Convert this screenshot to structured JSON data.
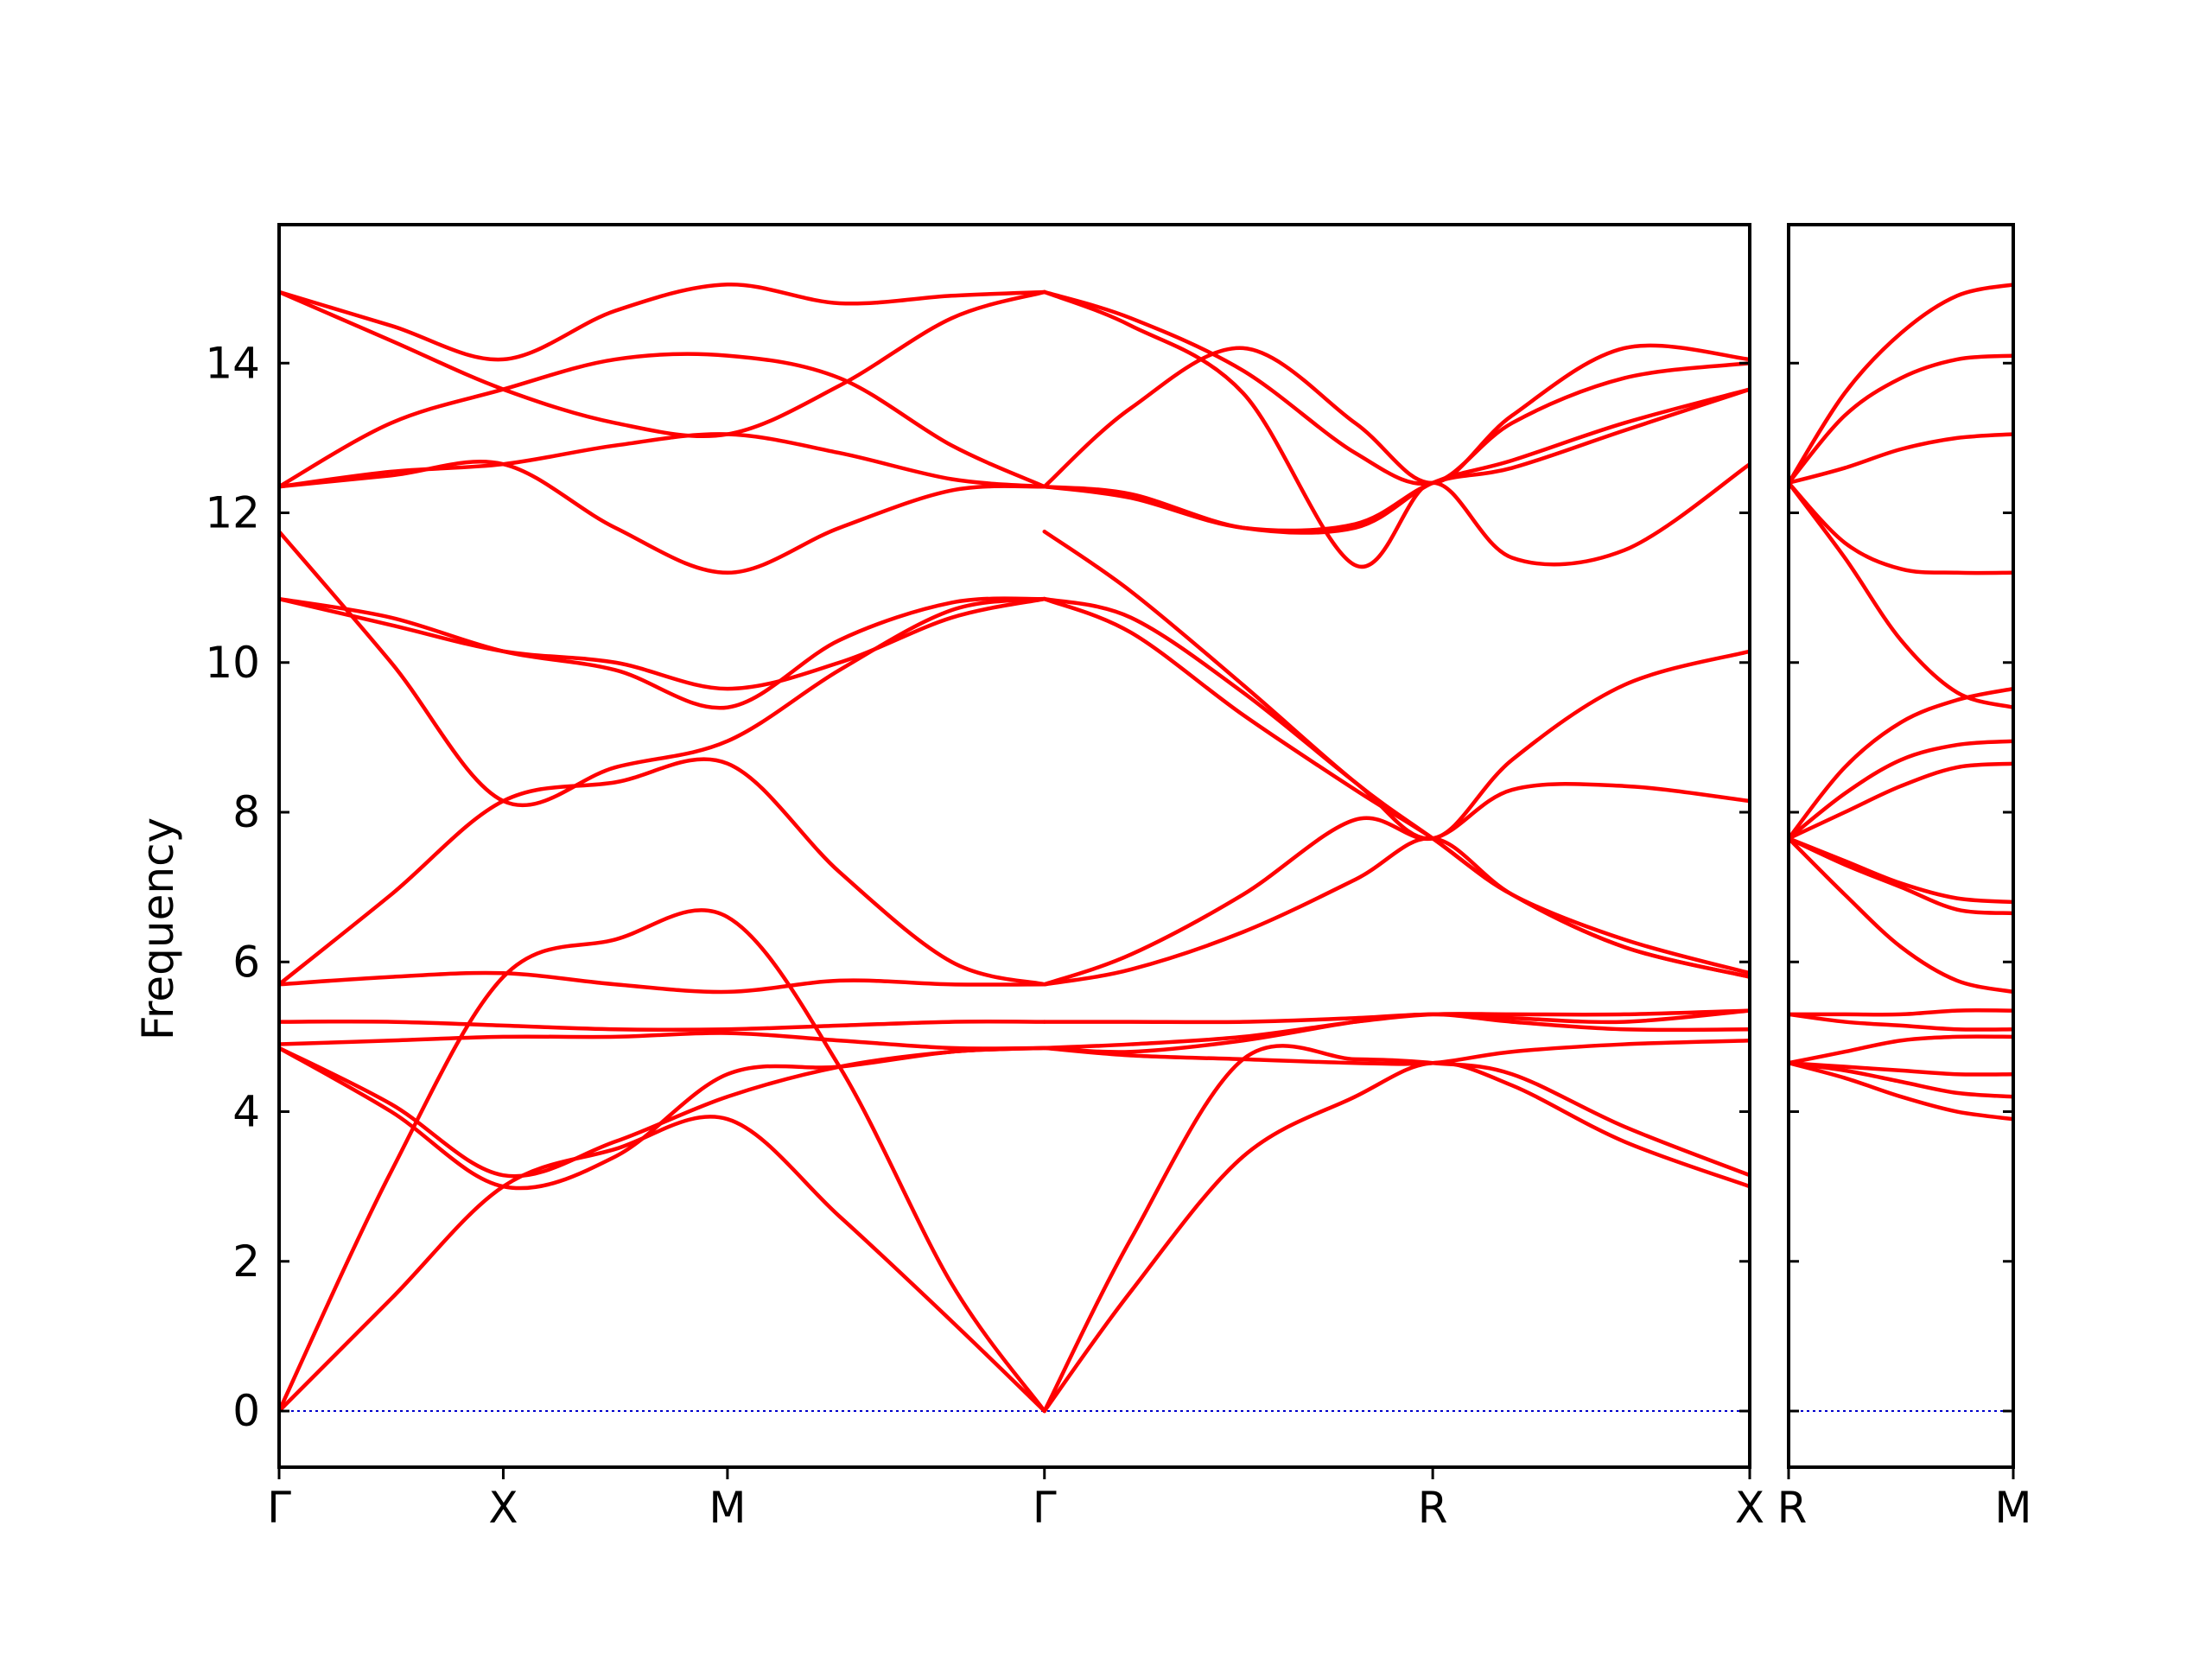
{
  "chart_data": {
    "type": "line",
    "title": "",
    "xlabel": "",
    "ylabel": "Frequency",
    "ylim": [
      -0.75,
      15.85
    ],
    "yticks": [
      0,
      2,
      4,
      6,
      8,
      10,
      12,
      14
    ],
    "grid": false,
    "legend": "none",
    "colors": {
      "band": "#ff0000",
      "zero_line": "#0000cc",
      "axes": "#000000"
    },
    "panels": [
      {
        "labels": [
          "Γ",
          "X",
          "M",
          "Γ",
          "R",
          "X"
        ],
        "label_positions": [
          0,
          1,
          2,
          3.414,
          5.146,
          6.56
        ],
        "series": [
          {
            "x": [
              0,
              0.5,
              1,
              1.5,
              2,
              2.5,
              3,
              3.414
            ],
            "values": [
              0,
              1.5,
              3.0,
              3.5,
              3.9,
              2.6,
              1.2,
              0
            ]
          },
          {
            "x": [
              0,
              0.5,
              1,
              1.5,
              2,
              2.5,
              3,
              3.414
            ],
            "values": [
              0,
              3.2,
              5.8,
              6.3,
              6.6,
              4.6,
              1.7,
              0
            ]
          },
          {
            "x": [
              0,
              0.5,
              1,
              1.5,
              2,
              2.5,
              3,
              3.414
            ],
            "values": [
              4.85,
              4.0,
              3.0,
              3.4,
              4.5,
              4.6,
              4.8,
              4.85
            ]
          },
          {
            "x": [
              0,
              0.5,
              1,
              1.5,
              2,
              2.5,
              3,
              3.414
            ],
            "values": [
              4.85,
              4.1,
              3.15,
              3.6,
              4.2,
              4.6,
              4.8,
              4.85
            ]
          },
          {
            "x": [
              0,
              0.5,
              1,
              1.5,
              2,
              2.5,
              3,
              3.414
            ],
            "values": [
              4.9,
              4.95,
              5.0,
              5.0,
              5.05,
              4.95,
              4.85,
              4.85
            ]
          },
          {
            "x": [
              0,
              0.5,
              1,
              1.5,
              2,
              2.5,
              3,
              3.414
            ],
            "values": [
              5.2,
              5.2,
              5.15,
              5.1,
              5.1,
              5.15,
              5.2,
              5.2
            ]
          },
          {
            "x": [
              0,
              0.5,
              1,
              1.5,
              2,
              2.5,
              3,
              3.414
            ],
            "values": [
              5.7,
              5.8,
              5.85,
              5.7,
              5.6,
              5.75,
              5.7,
              5.7
            ]
          },
          {
            "x": [
              0,
              0.5,
              1,
              1.5,
              2,
              2.5,
              3,
              3.414
            ],
            "values": [
              5.7,
              6.9,
              8.15,
              8.4,
              8.65,
              7.2,
              6.0,
              5.7
            ]
          },
          {
            "x": [
              0,
              0.5,
              1,
              1.5,
              2,
              2.5,
              3,
              3.414
            ],
            "values": [
              10.85,
              10.5,
              10.15,
              10.0,
              9.65,
              10.0,
              10.6,
              10.85
            ]
          },
          {
            "x": [
              0,
              0.5,
              1,
              1.5,
              2,
              2.5,
              3,
              3.414
            ],
            "values": [
              10.85,
              10.6,
              10.15,
              9.9,
              9.4,
              10.3,
              10.8,
              10.85
            ]
          },
          {
            "x": [
              0,
              0.5,
              1,
              1.5,
              2,
              2.5,
              3,
              3.414
            ],
            "values": [
              11.75,
              10.0,
              8.15,
              8.6,
              8.95,
              9.9,
              10.7,
              10.85
            ]
          },
          {
            "x": [
              0,
              0.5,
              1,
              1.5,
              2,
              2.5,
              3,
              3.414
            ],
            "values": [
              12.35,
              12.55,
              12.65,
              12.9,
              13.05,
              12.8,
              12.45,
              12.35
            ]
          },
          {
            "x": [
              0,
              0.5,
              1,
              1.5,
              2,
              2.5,
              3,
              3.414
            ],
            "values": [
              12.35,
              13.2,
              13.65,
              14.05,
              14.1,
              13.8,
              12.9,
              12.35
            ]
          },
          {
            "x": [
              0,
              0.5,
              1,
              1.5,
              2,
              2.5,
              3,
              3.414
            ],
            "values": [
              14.95,
              14.3,
              13.65,
              13.2,
              13.05,
              13.7,
              14.6,
              14.95
            ]
          },
          {
            "x": [
              0,
              0.5,
              1,
              1.5,
              2,
              2.5,
              3,
              3.414
            ],
            "values": [
              14.95,
              14.5,
              14.05,
              14.7,
              15.05,
              14.8,
              14.9,
              14.95
            ]
          },
          {
            "x": [
              0,
              0.5,
              1,
              1.5,
              2,
              2.5,
              3,
              3.414
            ],
            "values": [
              12.35,
              12.5,
              12.65,
              11.8,
              11.2,
              11.8,
              12.3,
              12.35
            ]
          },
          {
            "x": [
              3.414,
              3.8,
              4.3,
              4.8,
              5.146,
              5.5,
              6.0,
              6.56
            ],
            "values": [
              0,
              1.6,
              3.4,
              4.2,
              4.65,
              4.35,
              3.6,
              3.0
            ]
          },
          {
            "x": [
              3.414,
              3.8,
              4.3,
              4.8,
              5.146,
              5.5,
              6.0,
              6.56
            ],
            "values": [
              0,
              2.3,
              4.7,
              4.7,
              4.65,
              4.5,
              3.8,
              3.15
            ]
          },
          {
            "x": [
              3.414,
              3.8,
              4.3,
              4.8,
              5.146,
              5.5,
              6.0,
              6.56
            ],
            "values": [
              4.85,
              4.75,
              4.7,
              4.65,
              4.65,
              4.8,
              4.9,
              4.95
            ]
          },
          {
            "x": [
              3.414,
              3.8,
              4.3,
              4.8,
              5.146,
              5.5,
              6.0,
              6.56
            ],
            "values": [
              4.85,
              4.8,
              4.95,
              5.2,
              5.3,
              5.2,
              5.1,
              5.1
            ]
          },
          {
            "x": [
              3.414,
              3.8,
              4.3,
              4.8,
              5.146,
              5.5,
              6.0,
              6.56
            ],
            "values": [
              4.85,
              4.9,
              5.0,
              5.2,
              5.3,
              5.3,
              5.3,
              5.35
            ]
          },
          {
            "x": [
              3.414,
              3.8,
              4.3,
              4.8,
              5.146,
              5.5,
              6.0,
              6.56
            ],
            "values": [
              5.2,
              5.2,
              5.2,
              5.25,
              5.3,
              5.25,
              5.2,
              5.35
            ]
          },
          {
            "x": [
              3.414,
              3.8,
              4.3,
              4.8,
              5.146,
              5.5,
              6.0,
              6.56
            ],
            "values": [
              5.7,
              5.9,
              6.4,
              7.1,
              7.65,
              6.9,
              6.2,
              5.8
            ]
          },
          {
            "x": [
              3.414,
              3.8,
              4.3,
              4.8,
              5.146,
              5.5,
              6.0,
              6.56
            ],
            "values": [
              5.7,
              6.1,
              6.9,
              7.9,
              7.65,
              8.3,
              8.35,
              8.15
            ]
          },
          {
            "x": [
              3.414,
              3.8,
              4.3,
              4.8,
              5.146,
              5.5,
              6.0,
              6.56
            ],
            "values": [
              10.85,
              10.4,
              9.3,
              8.3,
              7.65,
              6.9,
              6.3,
              5.85
            ]
          },
          {
            "x": [
              3.414,
              3.8,
              4.3,
              4.8,
              5.146,
              5.5,
              6.0,
              6.56
            ],
            "values": [
              10.85,
              10.6,
              9.6,
              8.4,
              7.65,
              8.7,
              9.7,
              10.15
            ]
          },
          {
            "x": [
              3.414,
              3.8,
              4.3,
              4.8,
              5.146,
              5.5,
              6.0,
              6.56
            ],
            "values": [
              11.75,
              10.95,
              9.7,
              8.4,
              7.65,
              6.9,
              6.2,
              5.8
            ]
          },
          {
            "x": [
              3.414,
              3.8,
              4.3,
              4.8,
              5.146,
              5.5,
              6.0,
              6.56
            ],
            "values": [
              12.35,
              12.2,
              11.8,
              11.85,
              12.4,
              12.6,
              13.1,
              13.65
            ]
          },
          {
            "x": [
              3.414,
              3.8,
              4.3,
              4.8,
              5.146,
              5.5,
              6.0,
              6.56
            ],
            "values": [
              12.35,
              13.4,
              14.2,
              13.2,
              12.4,
              13.3,
              14.2,
              14.05
            ]
          },
          {
            "x": [
              3.414,
              3.8,
              4.3,
              4.8,
              5.146,
              5.5,
              6.0,
              6.56
            ],
            "values": [
              14.95,
              14.5,
              13.6,
              11.3,
              12.4,
              11.4,
              11.5,
              12.65
            ]
          },
          {
            "x": [
              3.414,
              3.8,
              4.3,
              4.8,
              5.146,
              5.5,
              6.0,
              6.56
            ],
            "values": [
              14.95,
              14.6,
              13.9,
              12.8,
              12.4,
              13.2,
              13.8,
              14.0
            ]
          },
          {
            "x": [
              3.414,
              3.8,
              4.3,
              4.8,
              5.146,
              5.5,
              6.0,
              6.56
            ],
            "values": [
              12.35,
              12.25,
              11.8,
              11.8,
              12.4,
              12.7,
              13.2,
              13.65
            ]
          }
        ]
      },
      {
        "labels": [
          "R",
          "M"
        ],
        "label_positions": [
          0,
          1
        ],
        "series": [
          {
            "x": [
              0,
              0.25,
              0.5,
              0.75,
              1
            ],
            "values": [
              4.65,
              4.45,
              4.2,
              4.0,
              3.9
            ]
          },
          {
            "x": [
              0,
              0.25,
              0.5,
              0.75,
              1
            ],
            "values": [
              4.65,
              4.55,
              4.4,
              4.25,
              4.2
            ]
          },
          {
            "x": [
              0,
              0.25,
              0.5,
              0.75,
              1
            ],
            "values": [
              4.65,
              4.6,
              4.55,
              4.5,
              4.5
            ]
          },
          {
            "x": [
              0,
              0.25,
              0.5,
              0.75,
              1
            ],
            "values": [
              4.65,
              4.8,
              4.95,
              5.0,
              5.0
            ]
          },
          {
            "x": [
              0,
              0.25,
              0.5,
              0.75,
              1
            ],
            "values": [
              5.3,
              5.2,
              5.15,
              5.1,
              5.1
            ]
          },
          {
            "x": [
              0,
              0.25,
              0.5,
              0.75,
              1
            ],
            "values": [
              5.3,
              5.3,
              5.3,
              5.35,
              5.35
            ]
          },
          {
            "x": [
              0,
              0.25,
              0.5,
              0.75,
              1
            ],
            "values": [
              7.65,
              6.9,
              6.2,
              5.75,
              5.6
            ]
          },
          {
            "x": [
              0,
              0.25,
              0.5,
              0.75,
              1
            ],
            "values": [
              7.65,
              7.3,
              7.0,
              6.7,
              6.65
            ]
          },
          {
            "x": [
              0,
              0.25,
              0.5,
              0.75,
              1
            ],
            "values": [
              7.65,
              7.35,
              7.05,
              6.85,
              6.8
            ]
          },
          {
            "x": [
              0,
              0.25,
              0.5,
              0.75,
              1
            ],
            "values": [
              7.65,
              8.0,
              8.35,
              8.6,
              8.65
            ]
          },
          {
            "x": [
              0,
              0.25,
              0.5,
              0.75,
              1
            ],
            "values": [
              7.65,
              8.25,
              8.7,
              8.9,
              8.95
            ]
          },
          {
            "x": [
              0,
              0.25,
              0.5,
              0.75,
              1
            ],
            "values": [
              7.65,
              8.6,
              9.2,
              9.5,
              9.65
            ]
          },
          {
            "x": [
              0,
              0.25,
              0.5,
              0.75,
              1
            ],
            "values": [
              12.4,
              11.4,
              10.3,
              9.6,
              9.4
            ]
          },
          {
            "x": [
              0,
              0.25,
              0.5,
              0.75,
              1
            ],
            "values": [
              12.4,
              11.6,
              11.25,
              11.2,
              11.2
            ]
          },
          {
            "x": [
              0,
              0.25,
              0.5,
              0.75,
              1
            ],
            "values": [
              12.4,
              12.6,
              12.85,
              13.0,
              13.05
            ]
          },
          {
            "x": [
              0,
              0.25,
              0.5,
              0.75,
              1
            ],
            "values": [
              12.4,
              13.3,
              13.8,
              14.05,
              14.1
            ]
          },
          {
            "x": [
              0,
              0.25,
              0.5,
              0.75,
              1
            ],
            "values": [
              12.4,
              13.6,
              14.4,
              14.9,
              15.05
            ]
          }
        ]
      }
    ]
  }
}
